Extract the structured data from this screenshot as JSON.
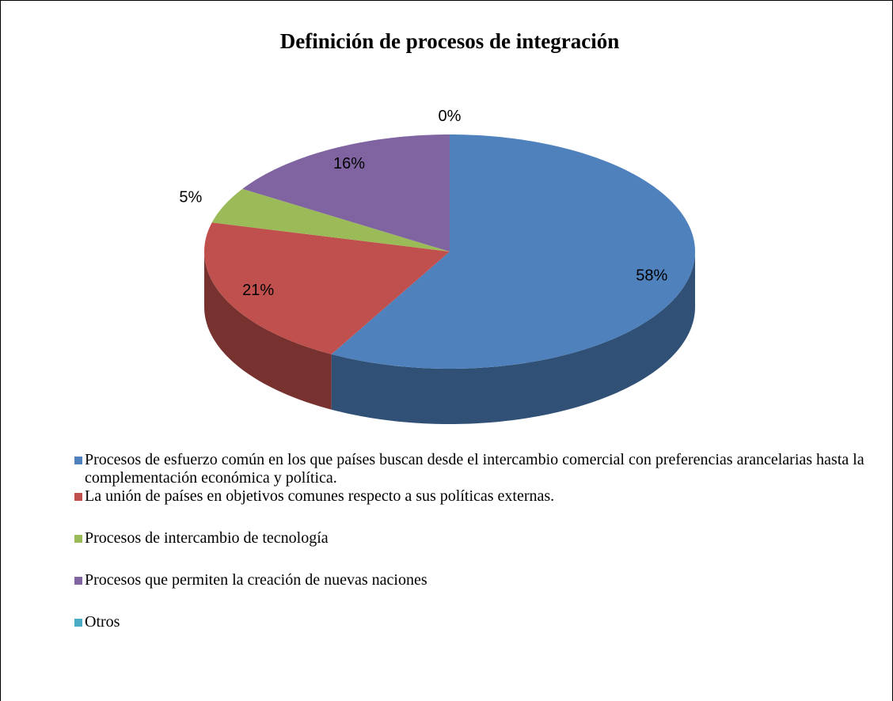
{
  "chart_data": {
    "type": "pie3d",
    "title": "Definición de procesos de integración",
    "categories": [
      "Procesos de esfuerzo común en los que países buscan desde el intercambio comercial con preferencias arancelarias hasta la complementación económica y política.",
      "La unión de países en objetivos comunes respecto a sus políticas externas.",
      "Procesos de intercambio de tecnología",
      "Procesos que permiten la creación de nuevas naciones",
      "Otros"
    ],
    "values": [
      58,
      21,
      5,
      16,
      0
    ],
    "value_labels": [
      "58%",
      "21%",
      "5%",
      "16%",
      "0%"
    ],
    "colors": [
      "#4f81bd",
      "#c0504d",
      "#9bbb59",
      "#8064a2",
      "#4bacc6"
    ],
    "legend": "bottom"
  }
}
